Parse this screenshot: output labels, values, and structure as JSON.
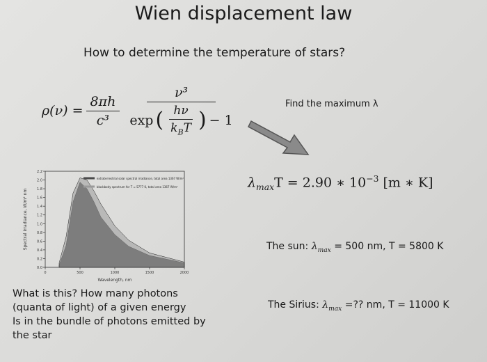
{
  "title": "Wien displacement law",
  "subtitle": "How to determine the temperature of stars?",
  "formula": {
    "lhs": "ρ(ν) =",
    "factor_numerator": "8πh",
    "factor_denominator": "c³",
    "numerator": "ν³",
    "exp": "exp",
    "exp_numerator": "hν",
    "exp_denominator": [
      "k",
      "B",
      "T"
    ],
    "minus_one": "− 1"
  },
  "arrow_label": "Find the maximum λ",
  "wien_law": {
    "lambda": "λ",
    "sub": "max",
    "rest": "T = 2.90 ∗ 10",
    "power": "−3",
    "unit": "[m ∗ K]"
  },
  "sun": {
    "label": "The sun:",
    "lambda": "λ",
    "sub": "max",
    "rest": "= 500 nm, T = 5800 K"
  },
  "sirius": {
    "label": "The Sirius:",
    "lambda": "λ",
    "sub": "max",
    "rest": "=?? nm, T = 11000 K"
  },
  "question": [
    "What is this? How many photons",
    "(quanta of light) of a given energy",
    "Is in the bundle of photons emitted by",
    "the star"
  ],
  "figure": {
    "type": "area",
    "x_label": "Wavelength, nm",
    "y_label": "Spectral irradiance, W/m² nm",
    "x": [
      200,
      300,
      400,
      500,
      600,
      700,
      800,
      1000,
      1200,
      1500,
      2000
    ],
    "series": [
      {
        "name": "extraterrestrial solar spectral irradiance, total area 1367 W/m²",
        "color": "#4a4a4a",
        "values": [
          0.05,
          0.5,
          1.5,
          1.95,
          1.8,
          1.5,
          1.15,
          0.75,
          0.48,
          0.27,
          0.1
        ]
      },
      {
        "name": "blackbody spectrum for T = 5777 K, total area 1367 W/m²",
        "color": "#9a9a9a",
        "values": [
          0.1,
          0.7,
          1.7,
          2.05,
          2.0,
          1.75,
          1.45,
          0.95,
          0.62,
          0.33,
          0.12
        ]
      }
    ],
    "xlim": [
      0,
      2000
    ],
    "xticks": [
      0,
      500,
      1000,
      1500,
      2000
    ],
    "ylim": [
      0,
      2.2
    ],
    "yticks": [
      {
        "value": 0,
        "label": "0.0"
      },
      0.2,
      0.4,
      0.6,
      0.8,
      {
        "value": 1,
        "label": "1.0"
      },
      1.2,
      1.4,
      1.6,
      1.8,
      {
        "value": 2,
        "label": "2.0"
      },
      2.2
    ]
  }
}
